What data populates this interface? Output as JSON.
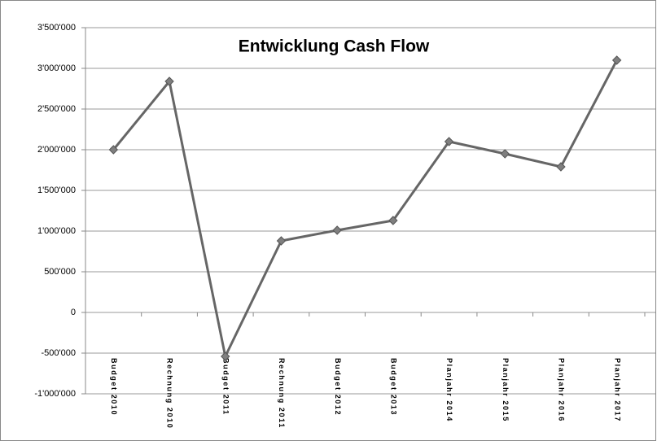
{
  "chart_data": {
    "type": "line",
    "title": "Entwicklung Cash Flow",
    "categories": [
      "Budget 2010",
      "Rechnung 2010",
      "Budget 2011",
      "Rechnung 2011",
      "Budget 2012",
      "Budget 2013",
      "Planjahr 2014",
      "Planjahr 2015",
      "Planjahr 2016",
      "Planjahr 2017"
    ],
    "series": [
      {
        "name": "Cash Flow",
        "color": "#666666",
        "values": [
          2000000,
          2840000,
          -540000,
          880000,
          1010000,
          1130000,
          2100000,
          1950000,
          1790000,
          3100000
        ]
      }
    ],
    "ylim": [
      -1000000,
      3500000
    ],
    "yticks": [
      {
        "value": -1000000,
        "label": "-1'000'000"
      },
      {
        "value": -500000,
        "label": "-500'000"
      },
      0,
      {
        "value": 500000,
        "label": "500'000"
      },
      {
        "value": 1000000,
        "label": "1'000'000"
      },
      {
        "value": 1500000,
        "label": "1'500'000"
      },
      {
        "value": 2000000,
        "label": "2'000'000"
      },
      {
        "value": 2500000,
        "label": "2'500'000"
      },
      {
        "value": 3000000,
        "label": "3'000'000"
      },
      {
        "value": 3500000,
        "label": "3'500'000"
      }
    ],
    "grid": true
  }
}
